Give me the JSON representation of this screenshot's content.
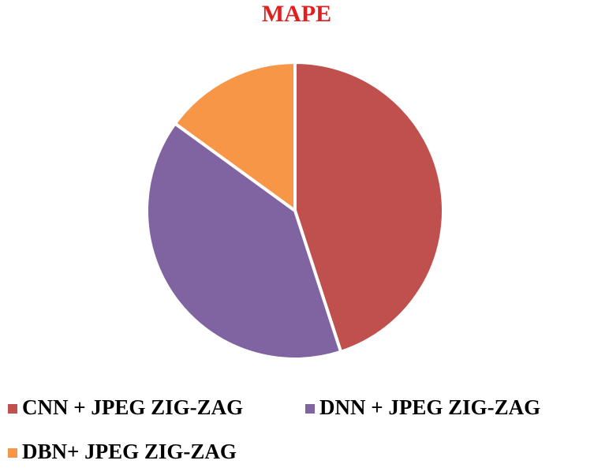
{
  "chart_data": {
    "type": "pie",
    "title": "MAPE",
    "categories": [
      "CNN + JPEG ZIG-ZAG",
      "DNN + JPEG ZIG-ZAG",
      "DBN+ JPEG ZIG-ZAG"
    ],
    "values": [
      45,
      40,
      15
    ],
    "colors": [
      "#c0504d",
      "#8064a2",
      "#f79646"
    ],
    "legend": "bottom"
  }
}
